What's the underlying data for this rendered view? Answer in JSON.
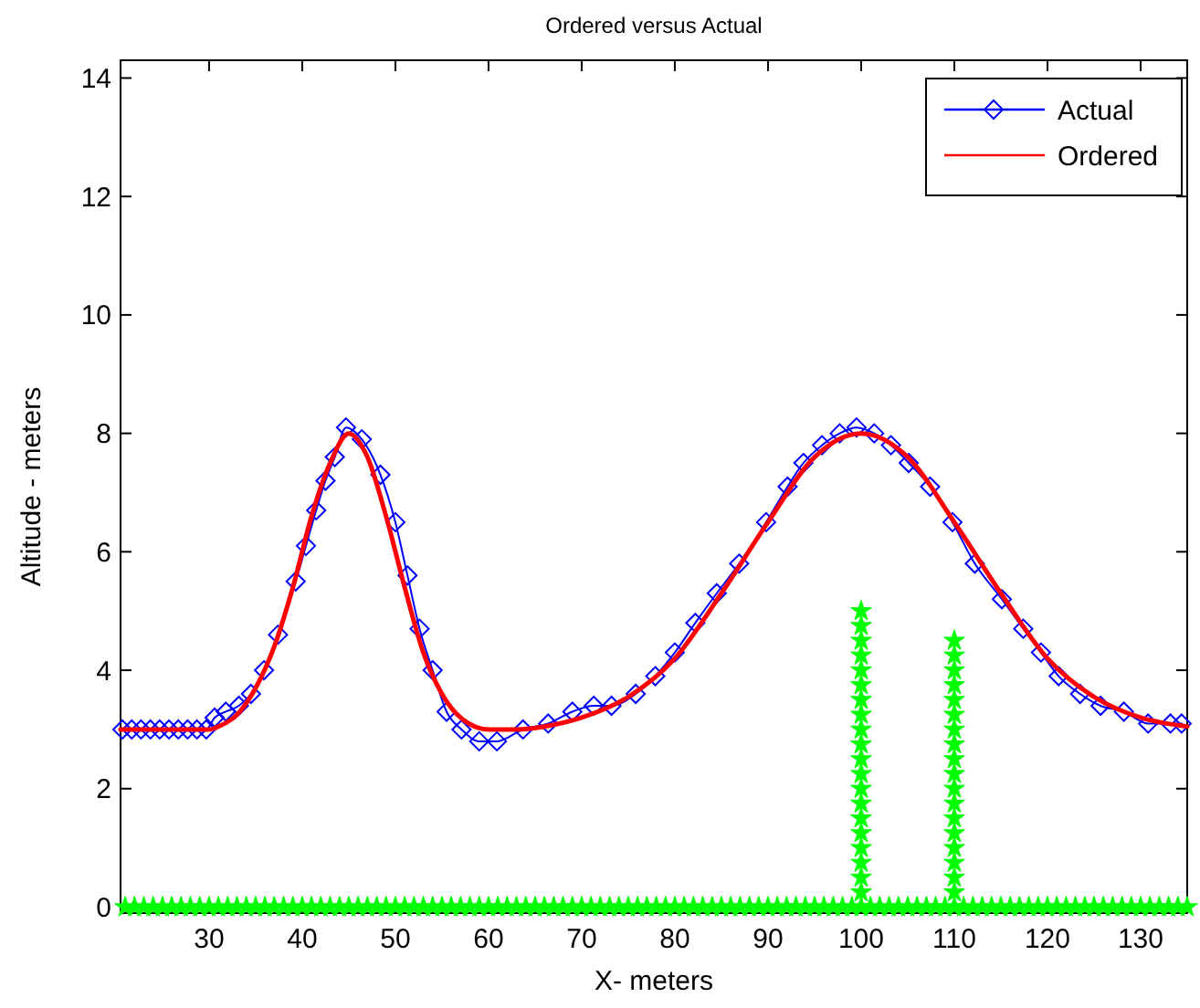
{
  "chart_data": {
    "type": "line",
    "title": "Ordered versus Actual",
    "xlabel": "X- meters",
    "ylabel": "Altitude - meters",
    "xlim": [
      20.5,
      135
    ],
    "ylim": [
      -0.1,
      14.3
    ],
    "xticks": [
      30,
      40,
      50,
      60,
      70,
      80,
      90,
      100,
      110,
      120,
      130
    ],
    "yticks": [
      0,
      2,
      4,
      6,
      8,
      10,
      12,
      14
    ],
    "grid": false,
    "legend": "top right",
    "series": [
      {
        "name": "Actual",
        "color": "#0000ff",
        "marker": "diamond",
        "x": [
          20.7,
          21.7,
          22.7,
          23.7,
          24.7,
          25.7,
          26.7,
          27.7,
          28.7,
          29.7,
          30.6,
          31.8,
          33.2,
          34.5,
          35.9,
          37.4,
          39.3,
          40.4,
          41.5,
          42.5,
          43.5,
          44.7,
          46.4,
          48.4,
          50.0,
          51.3,
          52.6,
          54.0,
          55.5,
          57.1,
          59.0,
          60.9,
          63.7,
          66.4,
          69.0,
          71.3,
          73.2,
          75.8,
          77.9,
          80.0,
          82.2,
          84.5,
          86.9,
          89.8,
          92.1,
          93.8,
          95.8,
          97.7,
          99.5,
          101.4,
          103.2,
          105.1,
          107.4,
          109.8,
          112.2,
          115.1,
          117.4,
          119.3,
          121.2,
          123.5,
          125.7,
          128.2,
          130.8,
          133.2,
          134.4
        ],
        "values": [
          3.0,
          3.0,
          3.0,
          3.0,
          3.0,
          3.0,
          3.0,
          3.0,
          3.0,
          3.0,
          3.2,
          3.3,
          3.4,
          3.6,
          4.0,
          4.6,
          5.5,
          6.1,
          6.7,
          7.2,
          7.6,
          8.1,
          7.9,
          7.3,
          6.5,
          5.6,
          4.7,
          4.0,
          3.3,
          3.0,
          2.8,
          2.8,
          3.0,
          3.1,
          3.3,
          3.4,
          3.4,
          3.6,
          3.9,
          4.3,
          4.8,
          5.3,
          5.8,
          6.5,
          7.1,
          7.5,
          7.8,
          8.0,
          8.1,
          8.0,
          7.8,
          7.5,
          7.1,
          6.5,
          5.8,
          5.2,
          4.7,
          4.3,
          3.9,
          3.6,
          3.4,
          3.3,
          3.1,
          3.1,
          3.1
        ]
      },
      {
        "name": "Ordered",
        "color": "#ff0000",
        "marker": "none",
        "x": [
          20.5,
          25,
          30,
          31,
          33,
          35,
          37,
          39,
          41,
          43,
          45,
          47,
          49,
          51,
          53,
          55,
          57,
          60,
          63,
          66,
          70,
          75,
          80,
          85,
          90,
          95,
          100,
          105,
          110,
          115,
          120,
          125,
          130,
          135
        ],
        "values": [
          3.0,
          3.0,
          3.0,
          3.05,
          3.25,
          3.7,
          4.4,
          5.4,
          6.6,
          7.5,
          8.0,
          7.6,
          6.6,
          5.4,
          4.3,
          3.6,
          3.2,
          3.0,
          3.0,
          3.05,
          3.2,
          3.55,
          4.2,
          5.3,
          6.5,
          7.6,
          8.0,
          7.6,
          6.5,
          5.3,
          4.2,
          3.55,
          3.2,
          3.05
        ]
      },
      {
        "type": "scatter",
        "color": "#00ff00",
        "marker": "star",
        "x": [
          21,
          22,
          23,
          24,
          25,
          26,
          27,
          28,
          29,
          30,
          31,
          32,
          33,
          34,
          35,
          36,
          37,
          38,
          39,
          40,
          41,
          42,
          43,
          44,
          45,
          46,
          47,
          48,
          49,
          50,
          51,
          52,
          53,
          54,
          55,
          56,
          57,
          58,
          59,
          60,
          61,
          62,
          63,
          64,
          65,
          66,
          67,
          68,
          69,
          70,
          71,
          72,
          73,
          74,
          75,
          76,
          77,
          78,
          79,
          80,
          81,
          82,
          83,
          84,
          85,
          86,
          87,
          88,
          89,
          90,
          91,
          92,
          93,
          94,
          95,
          96,
          97,
          98,
          99,
          100,
          101,
          102,
          103,
          104,
          105,
          106,
          107,
          108,
          109,
          110,
          111,
          112,
          113,
          114,
          115,
          116,
          117,
          118,
          119,
          120,
          121,
          122,
          123,
          124,
          125,
          126,
          127,
          128,
          129,
          130,
          131,
          132,
          133,
          134,
          135,
          100,
          100,
          100,
          100,
          100,
          100,
          100,
          100,
          100,
          100,
          100,
          100,
          100,
          100,
          100,
          100,
          100,
          100,
          100,
          100,
          110,
          110,
          110,
          110,
          110,
          110,
          110,
          110,
          110,
          110,
          110,
          110,
          110,
          110,
          110,
          110,
          110,
          110
        ],
        "values": [
          0,
          0,
          0,
          0,
          0,
          0,
          0,
          0,
          0,
          0,
          0,
          0,
          0,
          0,
          0,
          0,
          0,
          0,
          0,
          0,
          0,
          0,
          0,
          0,
          0,
          0,
          0,
          0,
          0,
          0,
          0,
          0,
          0,
          0,
          0,
          0,
          0,
          0,
          0,
          0,
          0,
          0,
          0,
          0,
          0,
          0,
          0,
          0,
          0,
          0,
          0,
          0,
          0,
          0,
          0,
          0,
          0,
          0,
          0,
          0,
          0,
          0,
          0,
          0,
          0,
          0,
          0,
          0,
          0,
          0,
          0,
          0,
          0,
          0,
          0,
          0,
          0,
          0,
          0,
          0,
          0,
          0,
          0,
          0,
          0,
          0,
          0,
          0,
          0,
          0,
          0,
          0,
          0,
          0,
          0,
          0,
          0,
          0,
          0,
          0,
          0,
          0,
          0,
          0,
          0,
          0,
          0,
          0,
          0,
          0,
          0,
          0,
          0,
          0,
          0,
          0.25,
          0.5,
          0.75,
          1,
          1.25,
          1.5,
          1.75,
          2,
          2.25,
          2.5,
          2.75,
          3,
          3.25,
          3.5,
          3.75,
          4,
          4.25,
          4.5,
          4.75,
          5,
          0.25,
          0.5,
          0.75,
          1,
          1.25,
          1.5,
          1.75,
          2,
          2.25,
          2.5,
          2.75,
          3,
          3.25,
          3.5,
          3.75,
          4,
          4.25,
          4.5
        ]
      }
    ]
  }
}
